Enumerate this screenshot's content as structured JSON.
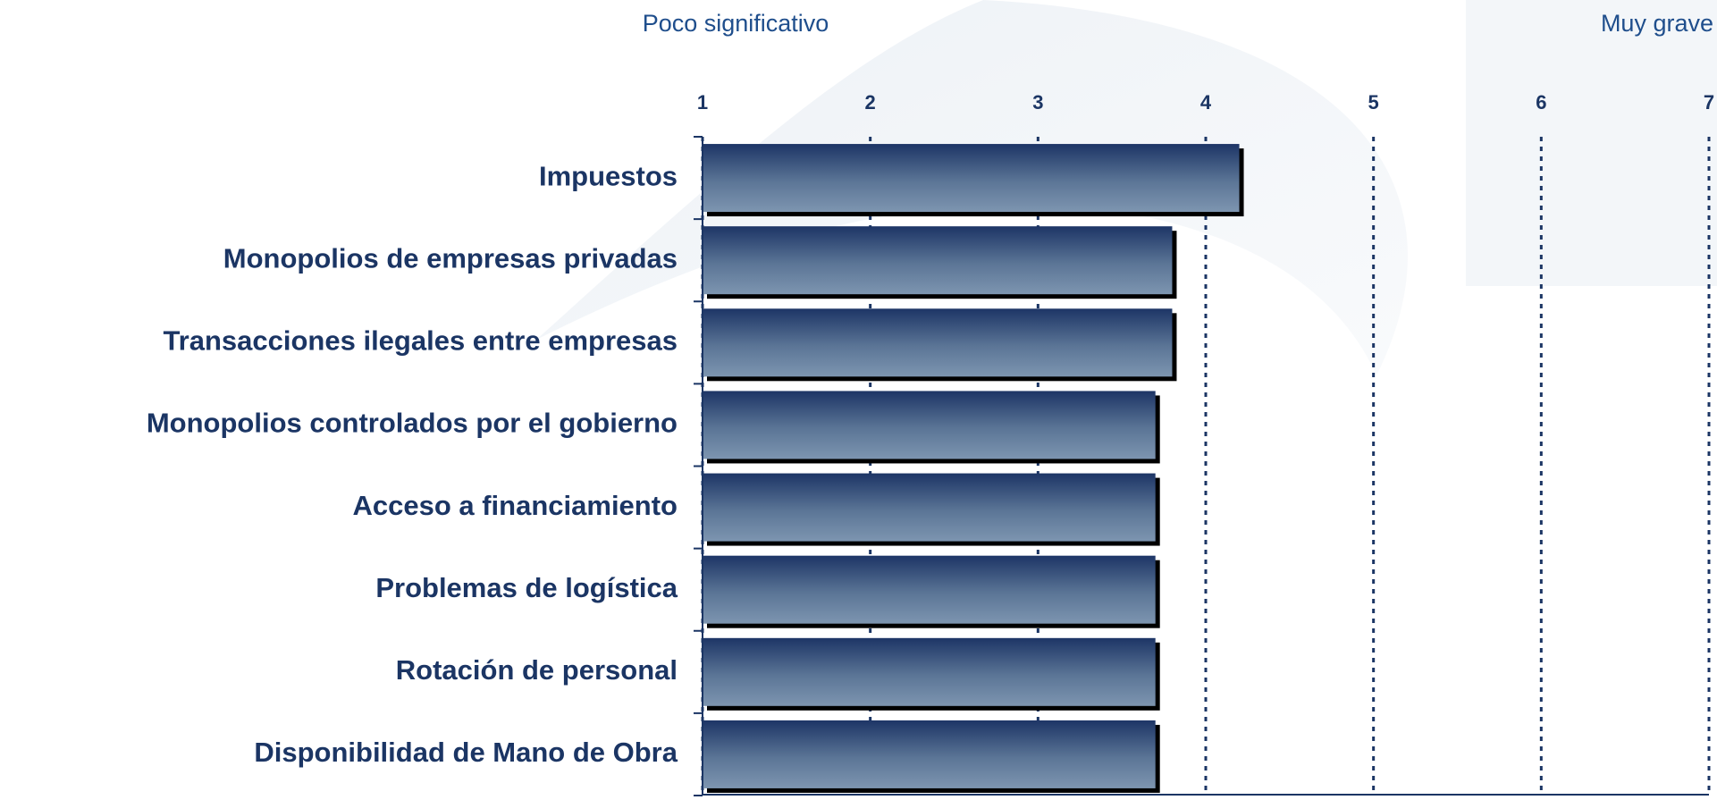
{
  "chart_data": {
    "type": "bar",
    "orientation": "horizontal",
    "scale_labels": {
      "low": "Poco significativo",
      "high": "Muy grave"
    },
    "categories": [
      "Impuestos",
      "Monopolios de empresas privadas",
      "Transacciones ilegales entre empresas",
      "Monopolios  controlados por el gobierno",
      "Acceso a financiamiento",
      "Problemas de logística",
      "Rotación de personal",
      "Disponibilidad de Mano de Obra"
    ],
    "values": [
      4.2,
      3.8,
      3.8,
      3.7,
      3.7,
      3.7,
      3.7,
      3.7
    ],
    "color": "#1d3566",
    "xlim": [
      1,
      7
    ],
    "xticks": [
      1,
      2,
      3,
      4,
      5,
      6,
      7
    ],
    "grid": true
  }
}
